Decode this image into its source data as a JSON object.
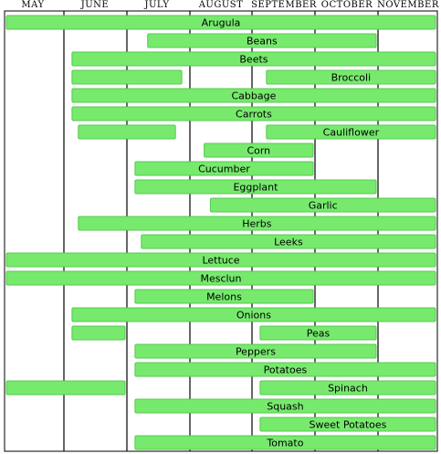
{
  "chart_data": {
    "type": "bar",
    "orientation": "horizontal-range",
    "months": [
      "MAY",
      "JUNE",
      "JULY",
      "AUGUST",
      "SEPTEMBER",
      "OCTOBER",
      "NOVEMBER"
    ],
    "x_range": [
      0,
      7
    ],
    "grid": true,
    "bar_color": "#77ea6e",
    "bar_border_color": "#55c94c",
    "crops": [
      {
        "label": "Arugula",
        "segments": [
          [
            0.0,
            7.0
          ]
        ]
      },
      {
        "label": "Beans",
        "segments": [
          [
            2.3,
            6.0
          ]
        ]
      },
      {
        "label": "Beets",
        "segments": [
          [
            1.1,
            7.0
          ]
        ]
      },
      {
        "label": "Broccoli",
        "segments": [
          [
            1.1,
            2.9
          ],
          [
            4.2,
            7.0
          ]
        ]
      },
      {
        "label": "Cabbage",
        "segments": [
          [
            1.1,
            7.0
          ]
        ]
      },
      {
        "label": "Carrots",
        "segments": [
          [
            1.1,
            7.0
          ]
        ]
      },
      {
        "label": "Cauliflower",
        "segments": [
          [
            1.2,
            2.8
          ],
          [
            4.2,
            7.0
          ]
        ]
      },
      {
        "label": "Corn",
        "segments": [
          [
            3.2,
            5.0
          ]
        ]
      },
      {
        "label": "Cucumber",
        "segments": [
          [
            2.1,
            5.0
          ]
        ]
      },
      {
        "label": "Eggplant",
        "segments": [
          [
            2.1,
            6.0
          ]
        ]
      },
      {
        "label": "Garlic",
        "segments": [
          [
            3.3,
            7.0
          ]
        ]
      },
      {
        "label": "Herbs",
        "segments": [
          [
            1.2,
            7.0
          ]
        ]
      },
      {
        "label": "Leeks",
        "segments": [
          [
            2.2,
            7.0
          ]
        ]
      },
      {
        "label": "Lettuce",
        "segments": [
          [
            0.0,
            7.0
          ]
        ]
      },
      {
        "label": "Mesclun",
        "segments": [
          [
            0.0,
            7.0
          ]
        ]
      },
      {
        "label": "Melons",
        "segments": [
          [
            2.1,
            5.0
          ]
        ]
      },
      {
        "label": "Onions",
        "segments": [
          [
            1.1,
            7.0
          ]
        ]
      },
      {
        "label": "Peas",
        "segments": [
          [
            1.1,
            2.0
          ],
          [
            4.1,
            6.0
          ]
        ]
      },
      {
        "label": "Peppers",
        "segments": [
          [
            2.1,
            6.0
          ]
        ]
      },
      {
        "label": "Potatoes",
        "segments": [
          [
            2.1,
            7.0
          ]
        ]
      },
      {
        "label": "Spinach",
        "segments": [
          [
            0.0,
            2.0
          ],
          [
            4.1,
            7.0
          ]
        ]
      },
      {
        "label": "Squash",
        "segments": [
          [
            2.1,
            7.0
          ]
        ]
      },
      {
        "label": "Sweet Potatoes",
        "segments": [
          [
            4.1,
            7.0
          ]
        ]
      },
      {
        "label": "Tomato",
        "segments": [
          [
            2.1,
            7.0
          ]
        ]
      }
    ]
  }
}
